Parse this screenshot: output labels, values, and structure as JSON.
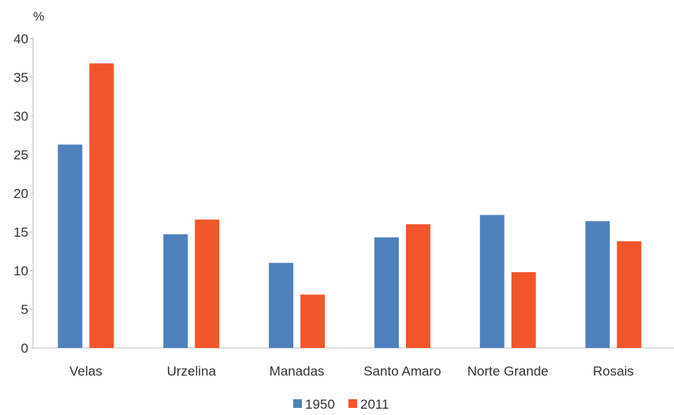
{
  "chart_data": {
    "type": "bar",
    "categories": [
      "Velas",
      "Urzelina",
      "Manadas",
      "Santo Amaro",
      "Norte Grande",
      "Rosais"
    ],
    "series": [
      {
        "name": "1950",
        "values": [
          26.3,
          14.7,
          11.0,
          14.3,
          17.2,
          16.4
        ],
        "color": "#4f81bd"
      },
      {
        "name": "2011",
        "values": [
          36.8,
          16.6,
          6.9,
          16.0,
          9.8,
          13.8
        ],
        "color": "#f0562a"
      }
    ],
    "yticks": [
      "0",
      "5",
      "10",
      "15",
      "20",
      "25",
      "30",
      "35",
      "40"
    ],
    "ylim": [
      0,
      40
    ],
    "ylabel": "%",
    "xlabel": "",
    "grid": false,
    "legend_position": "bottom-center"
  }
}
